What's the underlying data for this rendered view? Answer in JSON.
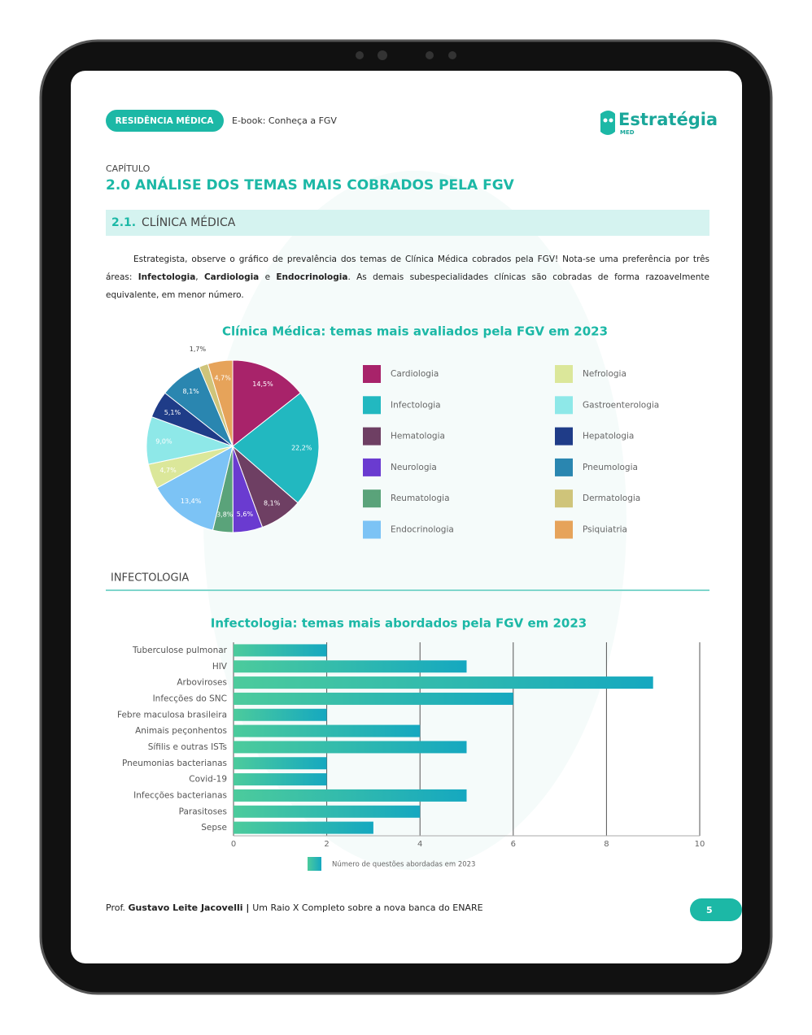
{
  "header": {
    "badge": "RESIDÊNCIA MÉDICA",
    "ebook": "E-book: Conheça a FGV",
    "logo": "Estratégia",
    "logo_sub": "MED"
  },
  "chapter": {
    "label": "CAPÍTULO",
    "title": "2.0 ANÁLISE DOS TEMAS MAIS COBRADOS PELA FGV"
  },
  "section": {
    "number": "2.1.",
    "title": "CLÍNICA MÉDICA"
  },
  "paragraph": [
    {
      "text": "Estrategista, observe o gráfico de prevalência dos temas de Clínica Médica cobrados pela FGV! Nota-se uma preferência por três áreas: ",
      "bold": false
    },
    {
      "text": "Infectologia",
      "bold": true
    },
    {
      "text": ", ",
      "bold": false
    },
    {
      "text": "Cardiologia",
      "bold": true
    },
    {
      "text": " e ",
      "bold": false
    },
    {
      "text": "Endocrinologia",
      "bold": true
    },
    {
      "text": ". As demais subespecialidades clínicas são cobradas de forma razoavelmente equivalente, em menor número.",
      "bold": false
    }
  ],
  "subsection": "INFECTOLOGIA",
  "chart_data": [
    {
      "type": "pie",
      "title": "Clínica Médica: temas mais avaliados pela FGV em 2023",
      "categories": [
        "Cardiologia",
        "Infectologia",
        "Hematologia",
        "Neurologia",
        "Reumatologia",
        "Endocrinologia",
        "Nefrologia",
        "Gastroenterologia",
        "Hepatologia",
        "Pneumologia",
        "Dermatologia",
        "Psiquiatria"
      ],
      "values": [
        14.5,
        22.2,
        8.1,
        5.6,
        3.8,
        13.4,
        4.7,
        9.0,
        5.1,
        8.1,
        1.7,
        4.7
      ],
      "value_labels": [
        "14,5%",
        "22,2%",
        "8,1%",
        "5,6%",
        "3,8%",
        "13,4%",
        "4,7%",
        "9,0%",
        "5,1%",
        "8,1%",
        "1,7%",
        "4,7%"
      ],
      "colors": [
        "#a8236a",
        "#22b8c0",
        "#6e3f63",
        "#6a3bd0",
        "#5aa37a",
        "#7cc3f5",
        "#dbe79a",
        "#8ee8e8",
        "#1f3c88",
        "#2a86b0",
        "#cfc47a",
        "#e6a35a"
      ]
    },
    {
      "type": "bar",
      "orientation": "horizontal",
      "title": "Infectologia: temas mais abordados pela FGV em 2023",
      "categories": [
        "Tuberculose pulmonar",
        "HIV",
        "Arboviroses",
        "Infecções do SNC",
        "Febre maculosa brasileira",
        "Animais peçonhentos",
        "Sífilis e outras ISTs",
        "Pneumonias bacterianas",
        "Covid-19",
        "Infecções bacterianas",
        "Parasitoses",
        "Sepse"
      ],
      "series": [
        {
          "name": "Número de questões abordadas em 2023",
          "gradient": [
            "#4ccb9c",
            "#15a8c0"
          ],
          "values": [
            2,
            5,
            9,
            6,
            2,
            4,
            5,
            2,
            2,
            5,
            4,
            3
          ]
        }
      ],
      "xlim": [
        0,
        10
      ],
      "xticks": [
        0,
        2,
        4,
        6,
        8,
        10
      ],
      "grid": true
    }
  ],
  "footer": {
    "runs": [
      {
        "text": "Prof. ",
        "bold": false
      },
      {
        "text": "Gustavo Leite Jacovelli",
        "bold": true
      },
      {
        "text": " | ",
        "bold": true
      },
      {
        "text": "Um Raio X Completo sobre a nova banca do ENARE",
        "bold": false
      }
    ],
    "page": "5"
  }
}
